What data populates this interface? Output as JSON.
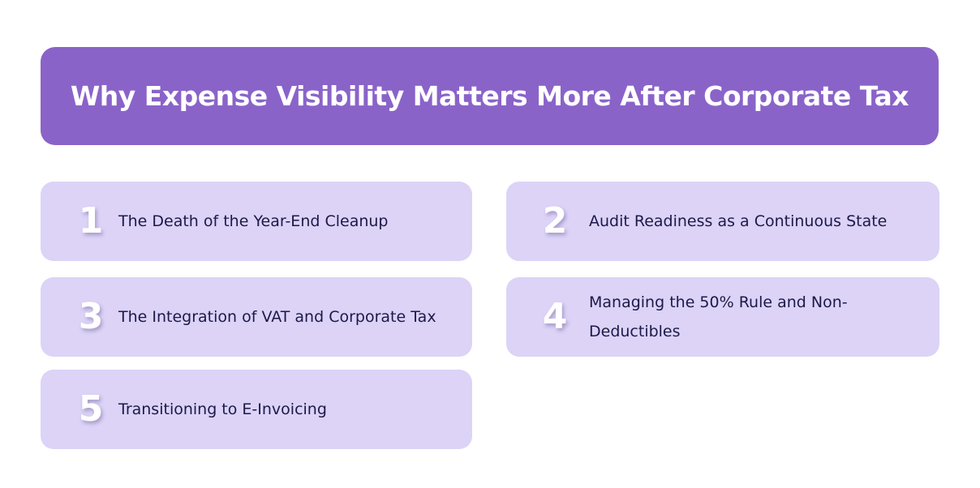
{
  "header": {
    "title": "Why Expense Visibility Matters More After Corporate Tax"
  },
  "items": [
    {
      "number": "1",
      "text": "The Death of the Year-End Cleanup"
    },
    {
      "number": "2",
      "text": "Audit Readiness as a Continuous State"
    },
    {
      "number": "3",
      "text": "The Integration of VAT and Corporate Tax"
    },
    {
      "number": "4",
      "text": "Managing the 50% Rule and Non-Deductibles"
    },
    {
      "number": "5",
      "text": "Transitioning to E-Invoicing"
    }
  ],
  "colors": {
    "header_bg": "#8a63c9",
    "card_bg": "#dcd3f7",
    "text": "#1c1a4a"
  }
}
